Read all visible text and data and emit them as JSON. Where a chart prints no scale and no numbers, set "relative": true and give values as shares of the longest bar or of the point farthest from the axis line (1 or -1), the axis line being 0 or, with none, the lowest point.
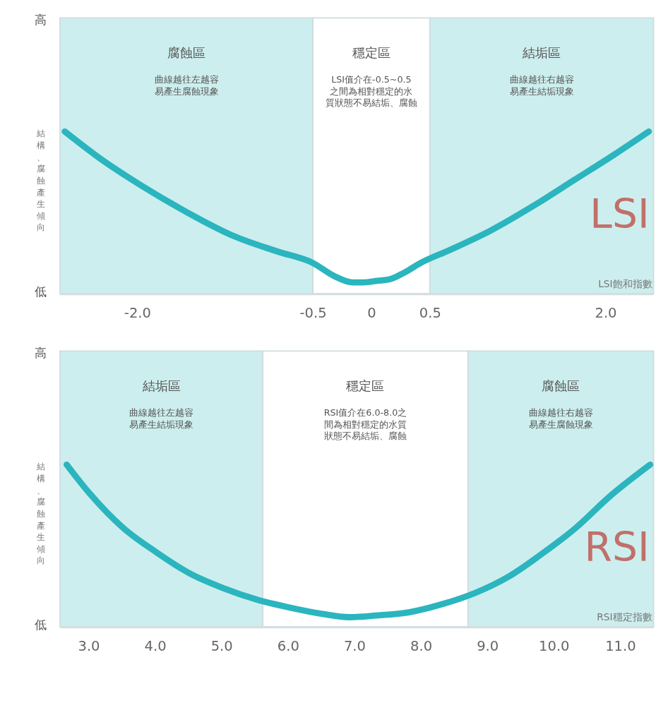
{
  "chart_data": [
    {
      "type": "line",
      "relative": true,
      "xlabel": "LSI飽和指數",
      "ylabel": "結構、腐蝕產生傾向",
      "x": [
        -2.62,
        -2.33,
        -1.95,
        -1.57,
        -1.19,
        -0.8,
        -0.5,
        -0.32,
        -0.16,
        -0.07,
        0.05,
        0.16,
        0.28,
        0.42,
        0.67,
        1.02,
        1.38,
        1.73,
        2.08,
        2.37
      ],
      "series": [
        {
          "color": "#2bb5be",
          "values": [
            1,
            0.84,
            0.66,
            0.5,
            0.36,
            0.26,
            0.19,
            0.11,
            0.07,
            0.07,
            0.08,
            0.09,
            0.13,
            0.19,
            0.27,
            0.39,
            0.54,
            0.7,
            0.86,
            1
          ]
        }
      ],
      "xlim": [
        -2.66,
        2.41
      ],
      "xticks": [
        {
          "value": -2,
          "label": "-2.0"
        },
        {
          "value": -0.5,
          "label": "-0.5"
        },
        {
          "value": 0,
          "label": "0"
        },
        0.5,
        {
          "value": 2,
          "label": "2.0"
        }
      ],
      "bands": [
        {
          "axis": "x",
          "from": -2.66,
          "to": -0.5,
          "label": "腐蝕區",
          "color": "#cdeeee"
        },
        {
          "axis": "x",
          "from": -0.5,
          "to": 0.5,
          "label": "穩定區",
          "color": "#ffffff"
        },
        {
          "axis": "x",
          "from": 0.5,
          "to": 2.41,
          "label": "結垢區",
          "color": "#cdeeee"
        }
      ],
      "annotations": [
        "高",
        "低",
        "LSI",
        "曲線越往左越容易產生腐蝕現象",
        "LSI值介在-0.5~0.5之間為相對穩定的水質狀態不易結垢、腐蝕",
        "曲線越往右越容易產生結垢現象"
      ],
      "line_style": "solid"
    },
    {
      "type": "line",
      "relative": true,
      "xlabel": "RSI穩定指數",
      "ylabel": "結構、腐蝕產生傾向",
      "x": [
        2.67,
        3.02,
        3.52,
        4.02,
        4.52,
        5.02,
        5.52,
        6.02,
        6.52,
        6.92,
        7.32,
        7.82,
        8.32,
        8.82,
        9.32,
        9.82,
        10.33,
        10.83,
        11.45
      ],
      "series": [
        {
          "color": "#2bb5be",
          "values": [
            1,
            0.82,
            0.61,
            0.46,
            0.33,
            0.24,
            0.17,
            0.12,
            0.08,
            0.06,
            0.07,
            0.09,
            0.14,
            0.21,
            0.31,
            0.45,
            0.61,
            0.8,
            1
          ]
        }
      ],
      "xlim": [
        2.57,
        11.5
      ],
      "xticks": [
        {
          "value": 3,
          "label": "3.0"
        },
        {
          "value": 4,
          "label": "4.0"
        },
        {
          "value": 5,
          "label": "5.0"
        },
        {
          "value": 6,
          "label": "6.0"
        },
        {
          "value": 7,
          "label": "7.0"
        },
        {
          "value": 8,
          "label": "8.0"
        },
        {
          "value": 9,
          "label": "9.0"
        },
        {
          "value": 10,
          "label": "10.0"
        },
        {
          "value": 11,
          "label": "11.0"
        }
      ],
      "bands": [
        {
          "axis": "x",
          "from": 2.57,
          "to": 5.62,
          "label": "結垢區",
          "color": "#cdeeee"
        },
        {
          "axis": "x",
          "from": 5.62,
          "to": 8.71,
          "label": "穩定區",
          "color": "#ffffff"
        },
        {
          "axis": "x",
          "from": 8.71,
          "to": 11.5,
          "label": "腐蝕區",
          "color": "#cdeeee"
        }
      ],
      "annotations": [
        "高",
        "低",
        "RSI",
        "曲線越往左越容易產生結垢現象",
        "RSI值介在6.0-8.0之間為相對穩定的水質狀態不易結垢、腐蝕",
        "曲線越往右越容易產生腐蝕現象"
      ],
      "line_style": "solid"
    }
  ]
}
